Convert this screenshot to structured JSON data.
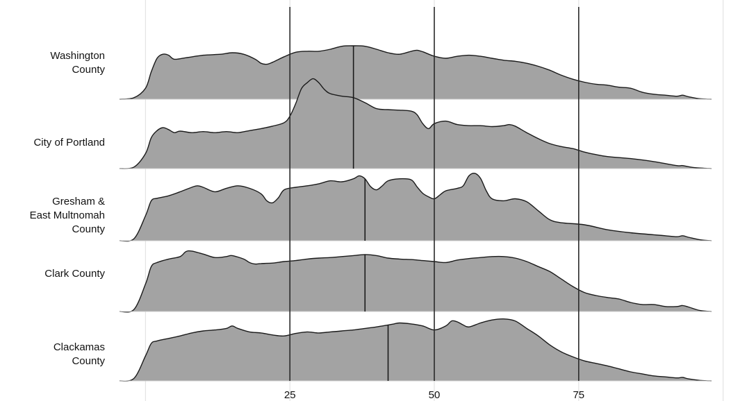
{
  "chart_data": {
    "type": "area",
    "subtype": "ridgeline",
    "title": "",
    "xlabel": "",
    "ylabel": "",
    "xlim": [
      -4.5,
      98
    ],
    "x_ticks": [
      25,
      50,
      75
    ],
    "x_gridlines": [
      0,
      25,
      50,
      75,
      100
    ],
    "grid": true,
    "legend": "none",
    "colors": {
      "fill": "#a3a3a3",
      "stroke": "#1a1a1a",
      "grid": "#e3e3e3",
      "ref_line": "#2a2a2a"
    },
    "reference_lines": [
      25,
      50,
      75
    ],
    "categories": [
      "Washington County",
      "City of Portland",
      "Gresham & East Multnomah County",
      "Clark County",
      "Clackamas County"
    ],
    "series": [
      {
        "label_lines": [
          "Washington",
          "County"
        ],
        "median": 36,
        "density": [
          [
            -4.5,
            0
          ],
          [
            -2,
            0.03
          ],
          [
            0,
            0.22
          ],
          [
            1,
            0.55
          ],
          [
            2,
            0.82
          ],
          [
            3,
            0.9
          ],
          [
            4,
            0.88
          ],
          [
            5,
            0.8
          ],
          [
            7,
            0.83
          ],
          [
            10,
            0.88
          ],
          [
            13,
            0.9
          ],
          [
            15,
            0.93
          ],
          [
            17,
            0.9
          ],
          [
            19,
            0.8
          ],
          [
            20,
            0.72
          ],
          [
            21,
            0.7
          ],
          [
            22,
            0.74
          ],
          [
            24,
            0.85
          ],
          [
            26,
            0.94
          ],
          [
            28,
            0.96
          ],
          [
            30,
            0.96
          ],
          [
            32,
            1.0
          ],
          [
            34,
            1.06
          ],
          [
            36,
            1.07
          ],
          [
            38,
            1.06
          ],
          [
            40,
            1.0
          ],
          [
            42,
            0.93
          ],
          [
            44,
            0.9
          ],
          [
            46,
            0.96
          ],
          [
            47,
            0.98
          ],
          [
            48,
            0.95
          ],
          [
            50,
            0.86
          ],
          [
            52,
            0.82
          ],
          [
            54,
            0.86
          ],
          [
            56,
            0.88
          ],
          [
            58,
            0.86
          ],
          [
            60,
            0.82
          ],
          [
            62,
            0.78
          ],
          [
            64,
            0.76
          ],
          [
            66,
            0.72
          ],
          [
            68,
            0.66
          ],
          [
            70,
            0.58
          ],
          [
            72,
            0.48
          ],
          [
            74,
            0.4
          ],
          [
            76,
            0.34
          ],
          [
            78,
            0.3
          ],
          [
            80,
            0.28
          ],
          [
            82,
            0.24
          ],
          [
            84,
            0.22
          ],
          [
            86,
            0.14
          ],
          [
            88,
            0.1
          ],
          [
            90,
            0.08
          ],
          [
            92,
            0.06
          ],
          [
            93,
            0.08
          ],
          [
            94,
            0.05
          ],
          [
            96,
            0.01
          ],
          [
            98,
            0
          ]
        ]
      },
      {
        "label_lines": [
          "City of Portland"
        ],
        "median": 36,
        "density": [
          [
            -4.5,
            0
          ],
          [
            -2,
            0.03
          ],
          [
            0,
            0.3
          ],
          [
            1,
            0.62
          ],
          [
            2,
            0.76
          ],
          [
            3,
            0.82
          ],
          [
            4,
            0.78
          ],
          [
            5,
            0.72
          ],
          [
            6,
            0.75
          ],
          [
            8,
            0.72
          ],
          [
            10,
            0.74
          ],
          [
            12,
            0.72
          ],
          [
            14,
            0.74
          ],
          [
            16,
            0.72
          ],
          [
            18,
            0.76
          ],
          [
            20,
            0.8
          ],
          [
            22,
            0.85
          ],
          [
            24,
            0.92
          ],
          [
            25,
            1.05
          ],
          [
            26,
            1.3
          ],
          [
            27,
            1.6
          ],
          [
            28,
            1.72
          ],
          [
            29,
            1.8
          ],
          [
            30,
            1.72
          ],
          [
            31,
            1.58
          ],
          [
            32,
            1.5
          ],
          [
            34,
            1.45
          ],
          [
            36,
            1.42
          ],
          [
            38,
            1.32
          ],
          [
            40,
            1.2
          ],
          [
            42,
            1.18
          ],
          [
            44,
            1.17
          ],
          [
            46,
            1.15
          ],
          [
            47,
            1.08
          ],
          [
            48,
            0.9
          ],
          [
            49,
            0.8
          ],
          [
            50,
            0.9
          ],
          [
            52,
            0.95
          ],
          [
            54,
            0.88
          ],
          [
            56,
            0.86
          ],
          [
            58,
            0.86
          ],
          [
            60,
            0.84
          ],
          [
            62,
            0.86
          ],
          [
            63,
            0.88
          ],
          [
            64,
            0.85
          ],
          [
            66,
            0.72
          ],
          [
            68,
            0.6
          ],
          [
            70,
            0.5
          ],
          [
            72,
            0.44
          ],
          [
            74,
            0.4
          ],
          [
            76,
            0.33
          ],
          [
            78,
            0.28
          ],
          [
            80,
            0.24
          ],
          [
            84,
            0.2
          ],
          [
            88,
            0.14
          ],
          [
            92,
            0.06
          ],
          [
            93,
            0.06
          ],
          [
            95,
            0.02
          ],
          [
            98,
            0
          ]
        ]
      },
      {
        "label_lines": [
          "Gresham &",
          "East Multnomah",
          "County"
        ],
        "median": 38,
        "density": [
          [
            -4.5,
            0
          ],
          [
            -2,
            0.04
          ],
          [
            0,
            0.5
          ],
          [
            1,
            0.8
          ],
          [
            2,
            0.85
          ],
          [
            4,
            0.9
          ],
          [
            6,
            0.98
          ],
          [
            8,
            1.07
          ],
          [
            9,
            1.1
          ],
          [
            10,
            1.07
          ],
          [
            12,
            0.98
          ],
          [
            14,
            1.05
          ],
          [
            16,
            1.1
          ],
          [
            18,
            1.05
          ],
          [
            20,
            0.94
          ],
          [
            21,
            0.8
          ],
          [
            22,
            0.76
          ],
          [
            23,
            0.86
          ],
          [
            24,
            1.02
          ],
          [
            26,
            1.07
          ],
          [
            28,
            1.1
          ],
          [
            30,
            1.14
          ],
          [
            32,
            1.2
          ],
          [
            34,
            1.18
          ],
          [
            36,
            1.24
          ],
          [
            37,
            1.3
          ],
          [
            38,
            1.24
          ],
          [
            39,
            1.08
          ],
          [
            40,
            1.02
          ],
          [
            41,
            1.1
          ],
          [
            42,
            1.2
          ],
          [
            44,
            1.24
          ],
          [
            46,
            1.22
          ],
          [
            47,
            1.08
          ],
          [
            48,
            0.95
          ],
          [
            49,
            0.88
          ],
          [
            50,
            0.84
          ],
          [
            51,
            0.92
          ],
          [
            52,
            1.0
          ],
          [
            54,
            1.05
          ],
          [
            55,
            1.1
          ],
          [
            56,
            1.3
          ],
          [
            57,
            1.35
          ],
          [
            58,
            1.25
          ],
          [
            59,
            1.0
          ],
          [
            60,
            0.84
          ],
          [
            62,
            0.8
          ],
          [
            64,
            0.84
          ],
          [
            66,
            0.78
          ],
          [
            68,
            0.6
          ],
          [
            70,
            0.42
          ],
          [
            72,
            0.36
          ],
          [
            76,
            0.32
          ],
          [
            80,
            0.22
          ],
          [
            84,
            0.16
          ],
          [
            88,
            0.12
          ],
          [
            90,
            0.1
          ],
          [
            92,
            0.08
          ],
          [
            93,
            0.1
          ],
          [
            94,
            0.07
          ],
          [
            96,
            0.02
          ],
          [
            98,
            0
          ]
        ]
      },
      {
        "label_lines": [
          "Clark County"
        ],
        "median": 38,
        "density": [
          [
            -4.5,
            0
          ],
          [
            -2,
            0.04
          ],
          [
            0,
            0.55
          ],
          [
            1,
            0.9
          ],
          [
            2,
            0.98
          ],
          [
            4,
            1.05
          ],
          [
            6,
            1.1
          ],
          [
            7,
            1.2
          ],
          [
            8,
            1.21
          ],
          [
            10,
            1.15
          ],
          [
            12,
            1.08
          ],
          [
            14,
            1.1
          ],
          [
            15,
            1.12
          ],
          [
            17,
            1.05
          ],
          [
            18,
            0.98
          ],
          [
            19,
            0.95
          ],
          [
            20,
            0.96
          ],
          [
            22,
            0.97
          ],
          [
            24,
            1.0
          ],
          [
            26,
            1.02
          ],
          [
            28,
            1.05
          ],
          [
            30,
            1.07
          ],
          [
            32,
            1.08
          ],
          [
            34,
            1.1
          ],
          [
            36,
            1.12
          ],
          [
            38,
            1.14
          ],
          [
            40,
            1.12
          ],
          [
            42,
            1.07
          ],
          [
            44,
            1.05
          ],
          [
            46,
            1.04
          ],
          [
            48,
            1.02
          ],
          [
            50,
            1.0
          ],
          [
            52,
            0.98
          ],
          [
            54,
            1.03
          ],
          [
            56,
            1.06
          ],
          [
            58,
            1.08
          ],
          [
            60,
            1.1
          ],
          [
            62,
            1.1
          ],
          [
            64,
            1.07
          ],
          [
            66,
            1.0
          ],
          [
            68,
            0.9
          ],
          [
            70,
            0.8
          ],
          [
            72,
            0.65
          ],
          [
            74,
            0.5
          ],
          [
            76,
            0.38
          ],
          [
            78,
            0.32
          ],
          [
            80,
            0.28
          ],
          [
            82,
            0.25
          ],
          [
            84,
            0.18
          ],
          [
            86,
            0.14
          ],
          [
            88,
            0.14
          ],
          [
            90,
            0.1
          ],
          [
            92,
            0.1
          ],
          [
            93,
            0.12
          ],
          [
            94,
            0.09
          ],
          [
            96,
            0.02
          ],
          [
            98,
            0
          ]
        ]
      },
      {
        "label_lines": [
          "Clackamas",
          "County"
        ],
        "median": 42,
        "density": [
          [
            -4.5,
            0
          ],
          [
            -2,
            0.05
          ],
          [
            0,
            0.5
          ],
          [
            1,
            0.75
          ],
          [
            2,
            0.8
          ],
          [
            4,
            0.85
          ],
          [
            6,
            0.9
          ],
          [
            8,
            0.96
          ],
          [
            10,
            1.0
          ],
          [
            12,
            1.02
          ],
          [
            14,
            1.05
          ],
          [
            15,
            1.1
          ],
          [
            16,
            1.05
          ],
          [
            18,
            0.98
          ],
          [
            20,
            0.96
          ],
          [
            22,
            0.92
          ],
          [
            24,
            0.9
          ],
          [
            26,
            0.95
          ],
          [
            28,
            0.98
          ],
          [
            30,
            0.96
          ],
          [
            32,
            0.98
          ],
          [
            34,
            1.0
          ],
          [
            36,
            1.02
          ],
          [
            38,
            1.05
          ],
          [
            40,
            1.08
          ],
          [
            42,
            1.12
          ],
          [
            43,
            1.14
          ],
          [
            44,
            1.16
          ],
          [
            46,
            1.14
          ],
          [
            48,
            1.1
          ],
          [
            50,
            1.02
          ],
          [
            52,
            1.1
          ],
          [
            53,
            1.2
          ],
          [
            54,
            1.18
          ],
          [
            55,
            1.12
          ],
          [
            56,
            1.08
          ],
          [
            58,
            1.16
          ],
          [
            60,
            1.22
          ],
          [
            62,
            1.24
          ],
          [
            64,
            1.2
          ],
          [
            66,
            1.05
          ],
          [
            68,
            0.9
          ],
          [
            70,
            0.72
          ],
          [
            72,
            0.58
          ],
          [
            74,
            0.48
          ],
          [
            76,
            0.4
          ],
          [
            78,
            0.35
          ],
          [
            80,
            0.3
          ],
          [
            82,
            0.24
          ],
          [
            84,
            0.18
          ],
          [
            86,
            0.14
          ],
          [
            88,
            0.1
          ],
          [
            90,
            0.08
          ],
          [
            92,
            0.06
          ],
          [
            93,
            0.07
          ],
          [
            94,
            0.04
          ],
          [
            96,
            0.01
          ],
          [
            98,
            0
          ]
        ]
      }
    ]
  }
}
